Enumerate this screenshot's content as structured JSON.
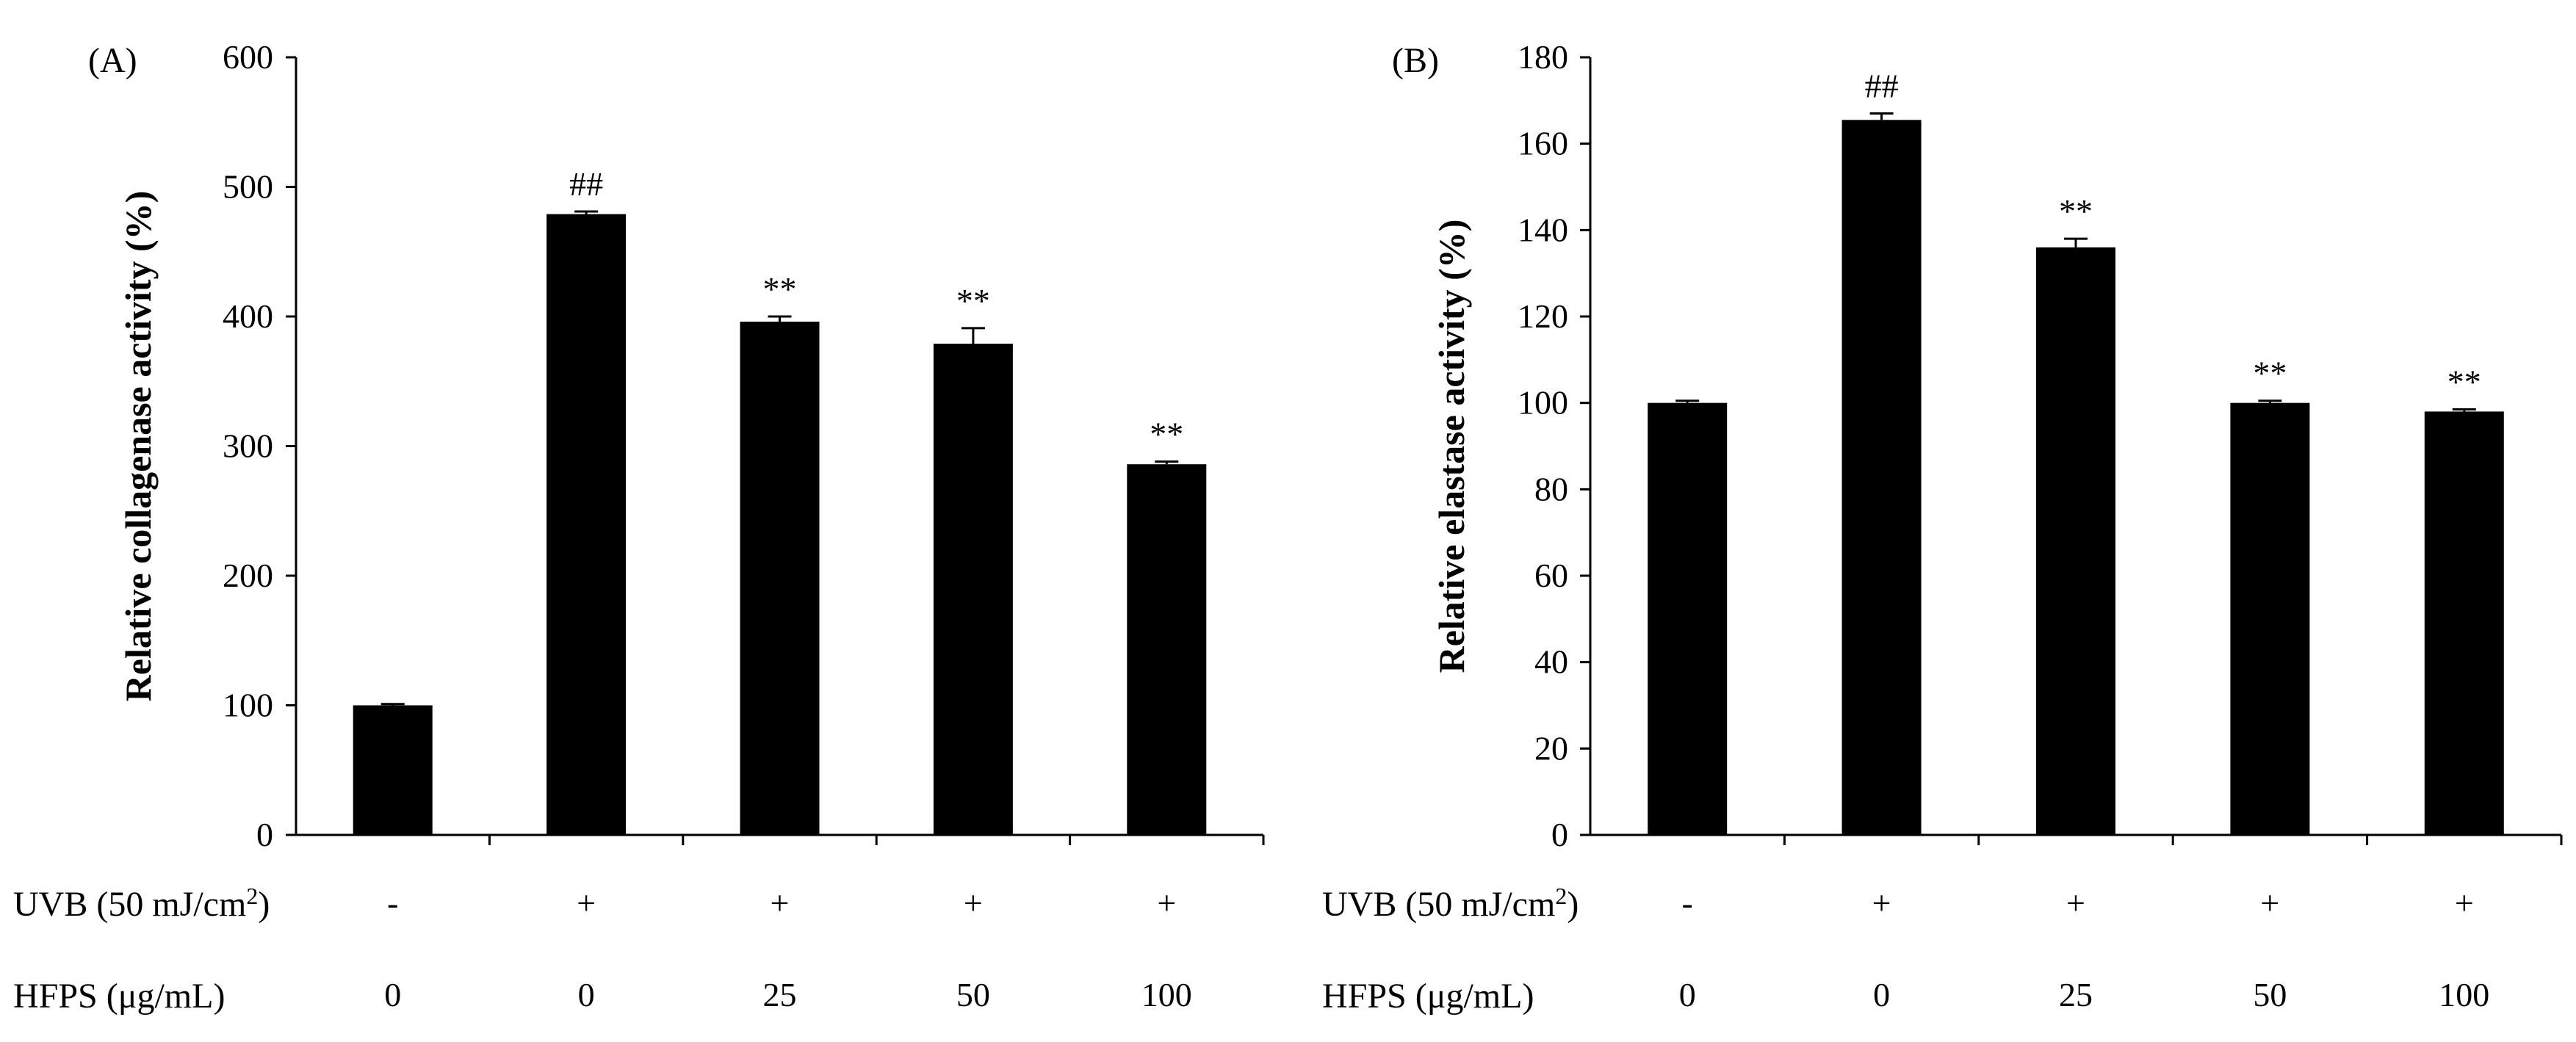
{
  "chart_data": [
    {
      "type": "bar",
      "panel_label": "(A)",
      "ylabel": "Relative collagenase activity (%)",
      "ylim": [
        0,
        600
      ],
      "yticks": [
        0,
        100,
        200,
        300,
        400,
        500,
        600
      ],
      "categories": [
        "-/0",
        "+/0",
        "+/25",
        "+/50",
        "+/100"
      ],
      "values": [
        100,
        479,
        396,
        379,
        286
      ],
      "errors": [
        1,
        2,
        4,
        12,
        2
      ],
      "significance": [
        "",
        "##",
        "**",
        "**",
        "**"
      ],
      "uvb": [
        "-",
        "+",
        "+",
        "+",
        "+"
      ],
      "hfps": [
        "0",
        "0",
        "25",
        "50",
        "100"
      ]
    },
    {
      "type": "bar",
      "panel_label": "(B)",
      "ylabel": "Relative elastase activity (%)",
      "ylim": [
        0,
        180
      ],
      "yticks": [
        0,
        20,
        40,
        60,
        80,
        100,
        120,
        140,
        160,
        180
      ],
      "categories": [
        "-/0",
        "+/0",
        "+/25",
        "+/50",
        "+/100"
      ],
      "values": [
        100,
        165.5,
        136,
        100,
        98
      ],
      "errors": [
        0.5,
        1.5,
        2,
        0.5,
        0.5
      ],
      "significance": [
        "",
        "##",
        "**",
        "**",
        "**"
      ],
      "uvb": [
        "-",
        "+",
        "+",
        "+",
        "+"
      ],
      "hfps": [
        "0",
        "0",
        "25",
        "50",
        "100"
      ]
    }
  ],
  "row_labels": {
    "uvb_prefix": "UVB (50 mJ/cm",
    "uvb_sup": "2",
    "uvb_suffix": ")",
    "hfps": "HFPS (μg/mL)"
  }
}
